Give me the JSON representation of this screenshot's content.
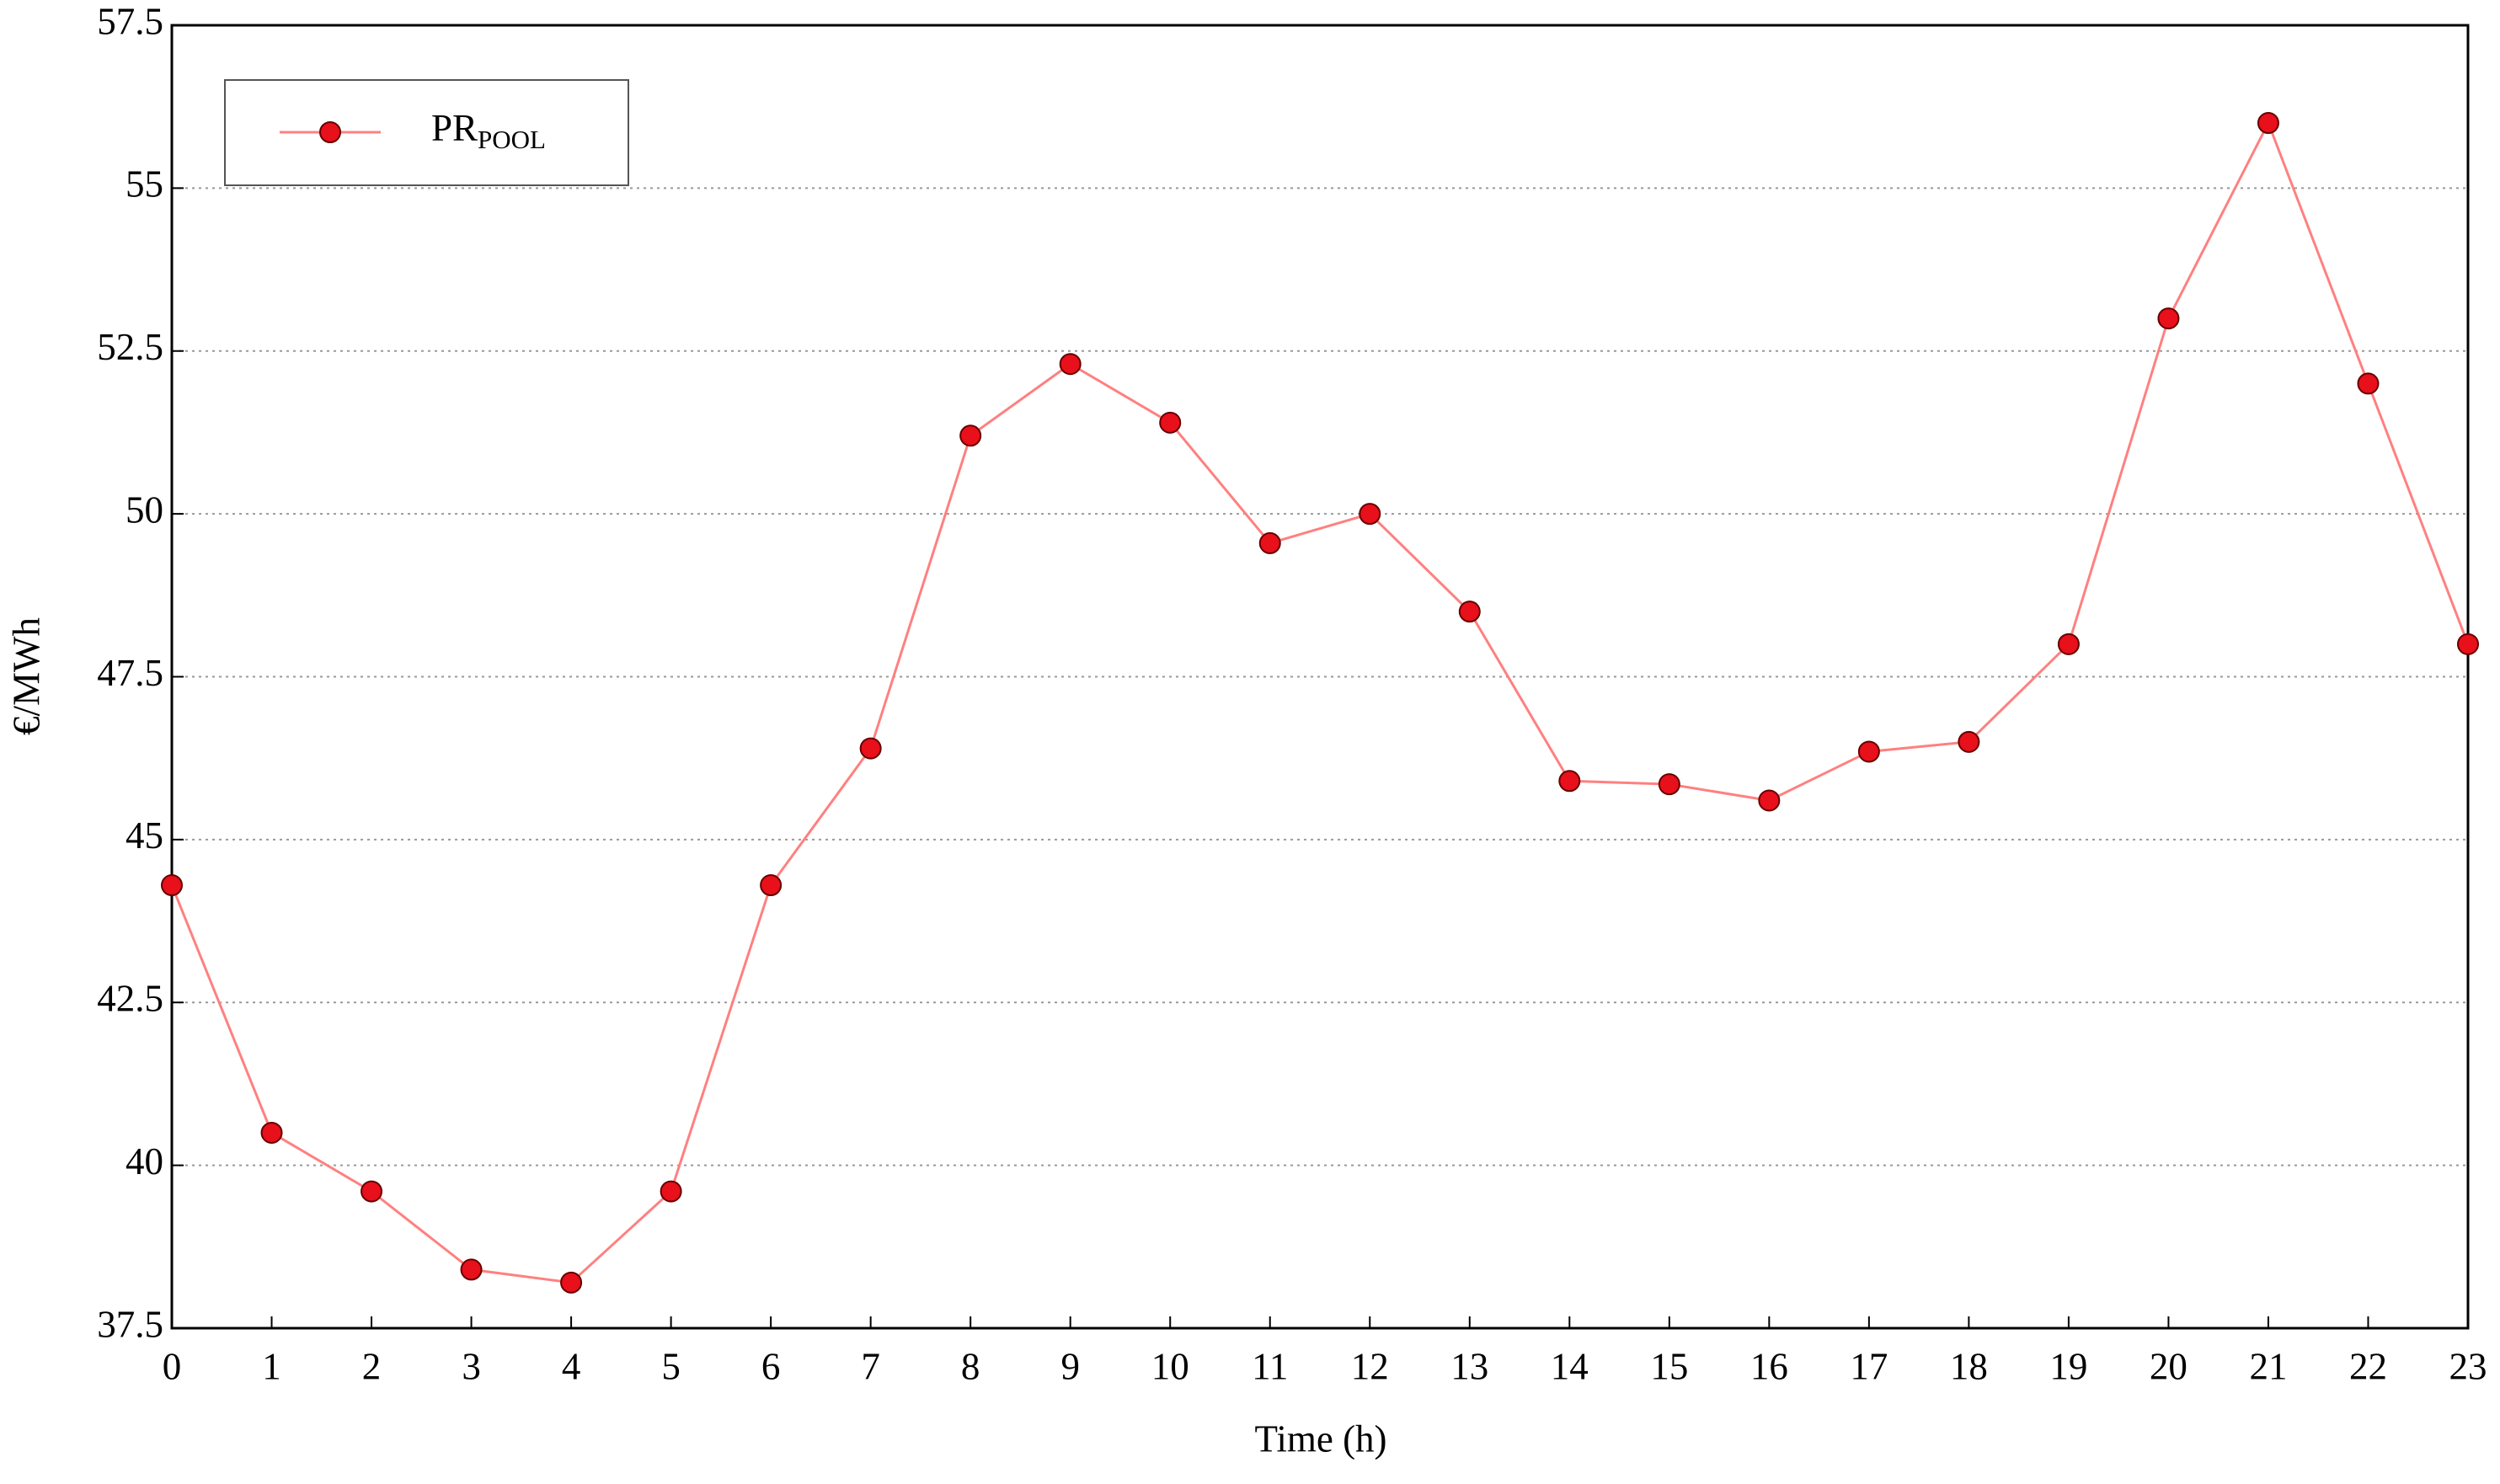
{
  "chart_data": {
    "type": "line",
    "x_label": "Time (h)",
    "y_label": "€/MWh",
    "x": [
      0,
      1,
      2,
      3,
      4,
      5,
      6,
      7,
      8,
      9,
      10,
      11,
      12,
      13,
      14,
      15,
      16,
      17,
      18,
      19,
      20,
      21,
      22,
      23
    ],
    "series": [
      {
        "name": "PR",
        "name_subscript": "POOL",
        "color": "#ff8080",
        "marker_color": "#e8101a",
        "values": [
          44.3,
          40.5,
          39.6,
          38.4,
          38.2,
          39.6,
          44.3,
          46.4,
          51.2,
          52.3,
          51.4,
          49.55,
          50,
          48.5,
          45.9,
          45.85,
          45.6,
          46.35,
          46.5,
          48,
          53,
          56,
          52,
          48
        ]
      }
    ],
    "xlim": [
      0,
      23
    ],
    "xticks": [
      0,
      1,
      2,
      3,
      4,
      5,
      6,
      7,
      8,
      9,
      10,
      11,
      12,
      13,
      14,
      15,
      16,
      17,
      18,
      19,
      20,
      21,
      22,
      23
    ],
    "ylim": [
      37.5,
      57.5
    ],
    "yticks": [
      37.5,
      40,
      42.5,
      45,
      47.5,
      50,
      52.5,
      55,
      57.5
    ],
    "grid": true,
    "legend": "upper left"
  }
}
